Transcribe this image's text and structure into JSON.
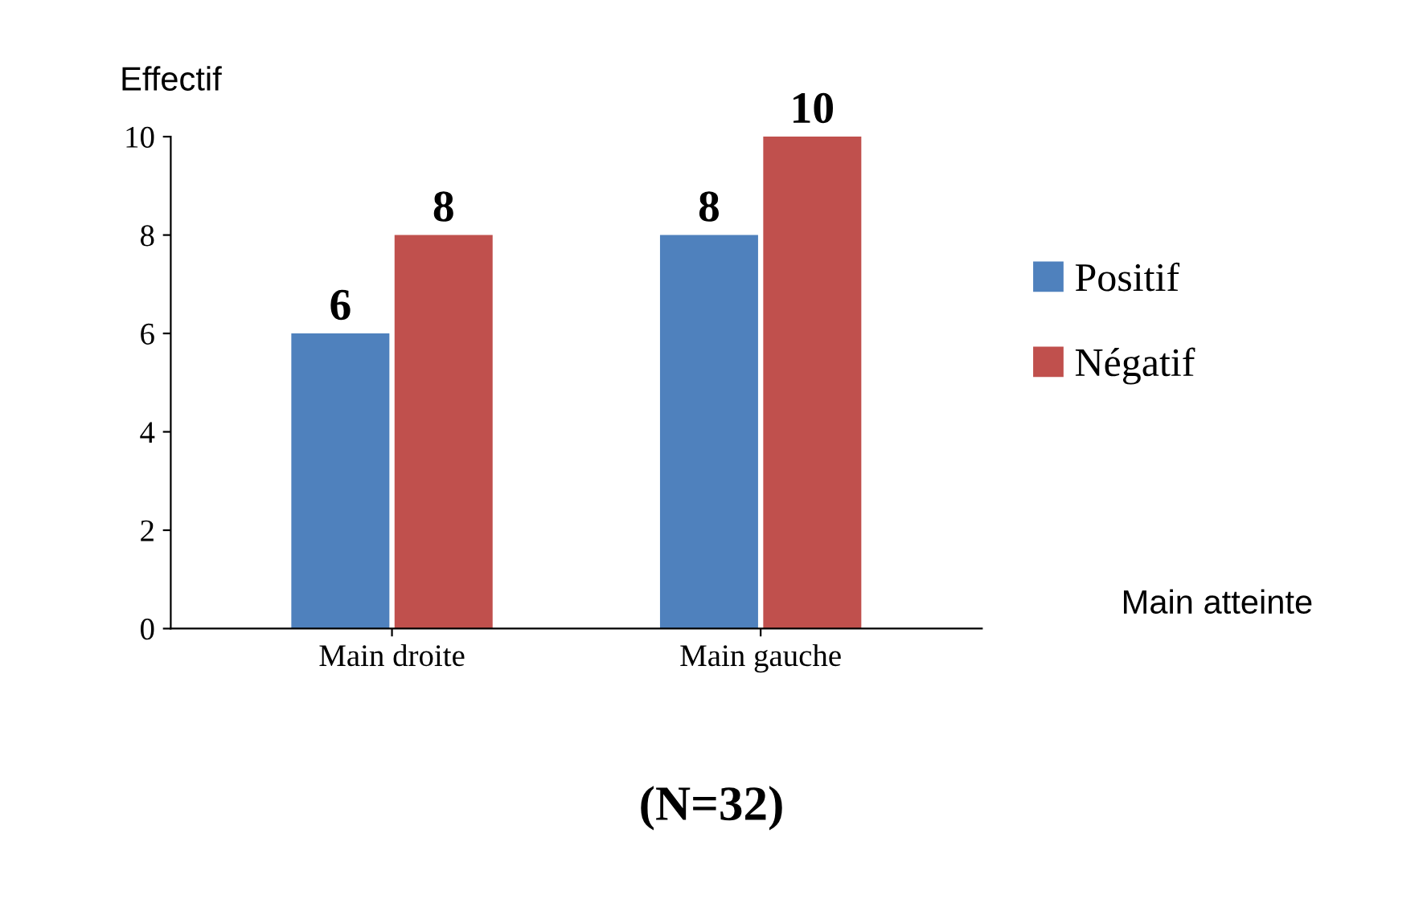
{
  "chart_data": {
    "type": "bar",
    "ylabel": "Effectif",
    "xlabel": "Main atteinte",
    "annotations": [
      "(N=32)"
    ],
    "categories": [
      "Main droite",
      "Main gauche"
    ],
    "series": [
      {
        "name": "Positif",
        "color": "#4f81bd",
        "values": [
          6,
          8
        ]
      },
      {
        "name": "Négatif",
        "color": "#c0504d",
        "values": [
          8,
          10
        ]
      }
    ],
    "ylim": [
      0,
      10
    ],
    "yticks": [
      0,
      2,
      4,
      6,
      8,
      10
    ],
    "grid": false,
    "legend": "right",
    "data_labels": true
  }
}
